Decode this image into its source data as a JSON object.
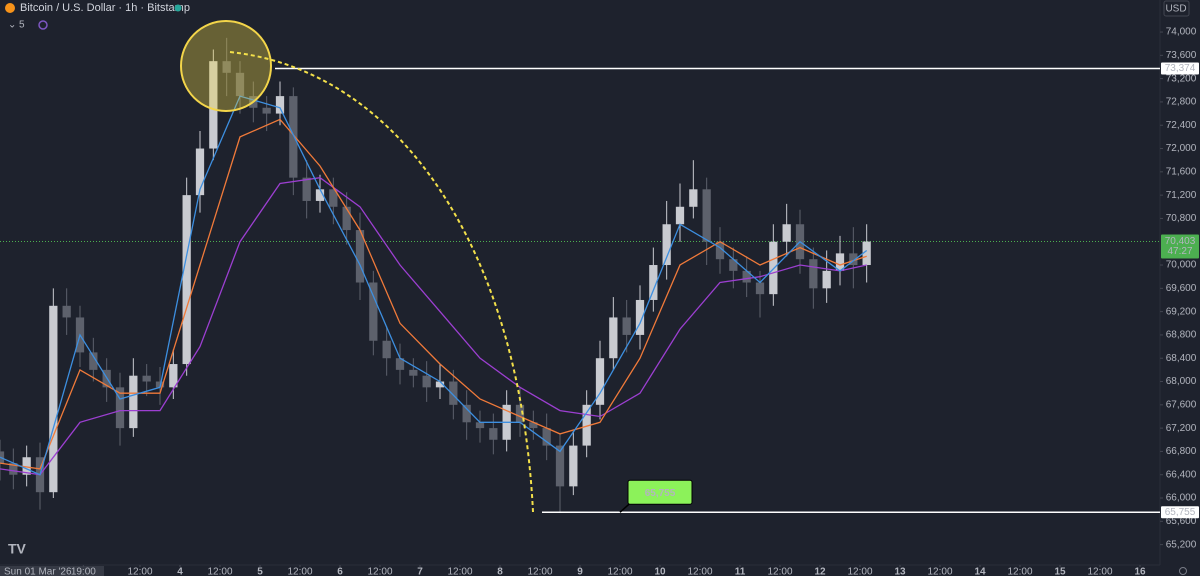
{
  "chart_data": {
    "type": "candlestick",
    "title": "Bitcoin / U.S. Dollar · 1h · Bitstamp",
    "indicators_label": "5",
    "currency": "USD",
    "date_label": "Sun 01 Mar '26",
    "colors": {
      "up": "#c9cbd1",
      "down": "#5d616c",
      "background": "#1e222d"
    },
    "xlim": [
      -6,
      342
    ],
    "ylim": [
      64850,
      74550
    ],
    "xticks": [
      {
        "value": 19,
        "label": "19:00"
      },
      {
        "value": 36,
        "label": "12:00"
      },
      {
        "value": 48,
        "label": "4"
      },
      {
        "value": 60,
        "label": "12:00"
      },
      {
        "value": 72,
        "label": "5"
      },
      {
        "value": 84,
        "label": "12:00"
      },
      {
        "value": 96,
        "label": "6"
      },
      {
        "value": 108,
        "label": "12:00"
      },
      {
        "value": 120,
        "label": "7"
      },
      {
        "value": 132,
        "label": "12:00"
      },
      {
        "value": 144,
        "label": "8"
      },
      {
        "value": 156,
        "label": "12:00"
      },
      {
        "value": 168,
        "label": "9"
      },
      {
        "value": 180,
        "label": "12:00"
      },
      {
        "value": 192,
        "label": "10"
      },
      {
        "value": 204,
        "label": "12:00"
      },
      {
        "value": 216,
        "label": "11"
      },
      {
        "value": 228,
        "label": "12:00"
      },
      {
        "value": 240,
        "label": "12"
      },
      {
        "value": 252,
        "label": "12:00"
      },
      {
        "value": 264,
        "label": "13"
      },
      {
        "value": 276,
        "label": "12:00"
      },
      {
        "value": 288,
        "label": "14"
      },
      {
        "value": 300,
        "label": "12:00"
      },
      {
        "value": 312,
        "label": "15"
      },
      {
        "value": 324,
        "label": "12:00"
      },
      {
        "value": 336,
        "label": "16"
      }
    ],
    "yticks": [
      {
        "value": 74000,
        "label": "74,000"
      },
      {
        "value": 73600,
        "label": "73,600"
      },
      {
        "value": 73200,
        "label": "73,200"
      },
      {
        "value": 72800,
        "label": "72,800"
      },
      {
        "value": 72400,
        "label": "72,400"
      },
      {
        "value": 72000,
        "label": "72,000"
      },
      {
        "value": 71600,
        "label": "71,600"
      },
      {
        "value": 71200,
        "label": "71,200"
      },
      {
        "value": 70800,
        "label": "70,800"
      },
      {
        "value": 70000,
        "label": "70,000"
      },
      {
        "value": 69600,
        "label": "69,600"
      },
      {
        "value": 69200,
        "label": "69,200"
      },
      {
        "value": 68800,
        "label": "68,800"
      },
      {
        "value": 68400,
        "label": "68,400"
      },
      {
        "value": 68000,
        "label": "68,000"
      },
      {
        "value": 67600,
        "label": "67,600"
      },
      {
        "value": 67200,
        "label": "67,200"
      },
      {
        "value": 66800,
        "label": "66,800"
      },
      {
        "value": 66400,
        "label": "66,400"
      },
      {
        "value": 66000,
        "label": "66,000"
      },
      {
        "value": 65600,
        "label": "65,600"
      },
      {
        "value": 65200,
        "label": "65,200"
      }
    ],
    "candles": {
      "x": [
        -6,
        -2,
        2,
        6,
        10,
        14,
        18,
        22,
        26,
        30,
        34,
        38,
        42,
        46,
        50,
        54,
        58,
        62,
        66,
        70,
        74,
        78,
        82,
        86,
        90,
        94,
        98,
        102,
        106,
        110,
        114,
        118,
        122,
        126,
        130,
        134,
        138,
        142,
        146,
        150,
        154,
        158,
        162,
        166,
        170,
        174,
        178,
        182,
        186,
        190,
        194,
        198,
        202,
        206,
        210,
        214,
        218,
        222,
        226,
        230,
        234,
        238,
        242,
        246,
        250,
        254
      ],
      "open": [
        66800,
        66600,
        66400,
        66700,
        66100,
        69300,
        69100,
        68500,
        68200,
        67900,
        67200,
        68100,
        68000,
        67900,
        68300,
        71200,
        72000,
        73500,
        73300,
        72900,
        72700,
        72600,
        72900,
        71500,
        71100,
        71300,
        71000,
        70600,
        69700,
        68700,
        68400,
        68200,
        68100,
        67900,
        68000,
        67600,
        67300,
        67200,
        67000,
        67600,
        67300,
        67200,
        66900,
        66200,
        66900,
        67600,
        68400,
        69100,
        68800,
        69400,
        70000,
        70700,
        71000,
        71300,
        70400,
        70100,
        69900,
        69700,
        69500,
        70400,
        70700,
        70100,
        69600,
        69900,
        70200,
        70000
      ],
      "high": [
        67000,
        66850,
        66900,
        66950,
        69600,
        69600,
        69300,
        68750,
        68400,
        68150,
        68400,
        68300,
        68250,
        68550,
        71500,
        72300,
        73700,
        73900,
        73500,
        73150,
        72900,
        73150,
        73050,
        71800,
        71550,
        71500,
        71250,
        70900,
        69900,
        68950,
        68650,
        68400,
        68350,
        68300,
        68200,
        67850,
        67500,
        67450,
        67850,
        67900,
        67500,
        67450,
        67100,
        67150,
        67850,
        68700,
        69450,
        69400,
        69650,
        70300,
        71100,
        71400,
        71800,
        71500,
        70650,
        70300,
        70150,
        69900,
        70700,
        71050,
        70950,
        70300,
        70250,
        70500,
        70650,
        70700
      ],
      "low": [
        66300,
        66150,
        66200,
        65800,
        66000,
        68800,
        68250,
        68000,
        67650,
        66900,
        67050,
        67750,
        67600,
        67700,
        68100,
        70900,
        71800,
        72900,
        72600,
        72450,
        72300,
        72400,
        71200,
        70800,
        70900,
        70700,
        70350,
        69400,
        68450,
        68100,
        67950,
        67900,
        67650,
        67700,
        67350,
        67000,
        66950,
        66750,
        66800,
        67050,
        67000,
        66650,
        65755,
        66050,
        66700,
        67350,
        68200,
        68500,
        68550,
        69200,
        69750,
        70400,
        70800,
        70000,
        69850,
        69600,
        69450,
        69100,
        69300,
        70150,
        69850,
        69250,
        69350,
        69650,
        69600,
        69700
      ],
      "close": [
        66600,
        66400,
        66700,
        66100,
        69300,
        69100,
        68500,
        68200,
        67900,
        67200,
        68100,
        68000,
        67900,
        68300,
        71200,
        72000,
        73500,
        73300,
        72900,
        72700,
        72600,
        72900,
        71500,
        71100,
        71300,
        71000,
        70600,
        69700,
        68700,
        68400,
        68200,
        68100,
        67900,
        68000,
        67600,
        67300,
        67200,
        67000,
        67600,
        67300,
        67200,
        66900,
        66200,
        66900,
        67600,
        68400,
        69100,
        68800,
        69400,
        70000,
        70700,
        71000,
        71300,
        70400,
        70100,
        69900,
        69700,
        69500,
        70400,
        70700,
        70100,
        69600,
        69900,
        70200,
        70000,
        70403
      ]
    },
    "line_x": [
      -6,
      6,
      18,
      30,
      42,
      54,
      66,
      78,
      90,
      102,
      114,
      126,
      138,
      150,
      162,
      174,
      186,
      198,
      210,
      222,
      234,
      246,
      254
    ],
    "lines": [
      {
        "color": "#9c3fd1",
        "values": [
          66500,
          66400,
          67300,
          67500,
          67500,
          68600,
          70400,
          71400,
          71500,
          71000,
          70000,
          69200,
          68400,
          67900,
          67500,
          67400,
          67800,
          68900,
          69700,
          69800,
          70000,
          69900,
          70000
        ]
      },
      {
        "color": "#f07a3a",
        "values": [
          66600,
          66500,
          68200,
          67800,
          67800,
          70000,
          72200,
          72500,
          71700,
          70600,
          69000,
          68300,
          67700,
          67400,
          67100,
          67300,
          68400,
          70000,
          70400,
          70000,
          70300,
          70000,
          70150
        ]
      },
      {
        "color": "#3d8fe0",
        "values": [
          66700,
          66400,
          68800,
          67700,
          67900,
          71300,
          72900,
          72700,
          71300,
          70000,
          68400,
          68000,
          67300,
          67300,
          66800,
          67800,
          69000,
          70700,
          70300,
          69700,
          70400,
          69900,
          70250
        ]
      }
    ],
    "levels": [
      {
        "value": 73374,
        "label": "73,374",
        "start_x": 76.5
      },
      {
        "value": 65755,
        "label": "65,755",
        "start_x": 156.6
      }
    ],
    "last_price": {
      "value": 70403,
      "label": "70,403",
      "countdown": "47:27"
    },
    "callout": {
      "value": 65755,
      "label": "65,755",
      "x": 180
    }
  }
}
